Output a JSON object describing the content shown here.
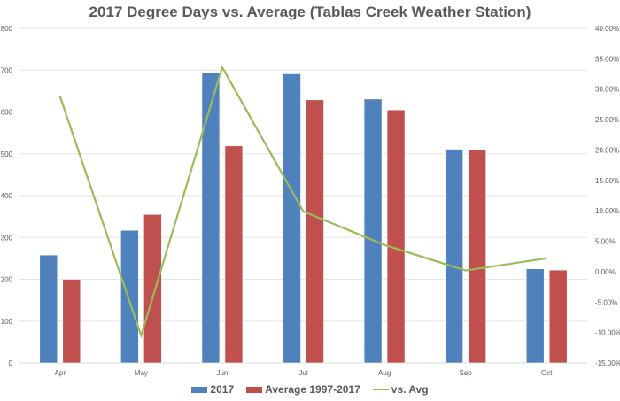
{
  "chart_data": {
    "type": "bar",
    "title": "2017 Degree Days vs. Average (Tablas Creek Weather Station)",
    "xlabel": "",
    "ylabel": "",
    "categories": [
      "Apr",
      "May",
      "Jun",
      "Jul",
      "Aug",
      "Sep",
      "Oct"
    ],
    "series": [
      {
        "name": "2017",
        "type": "bar",
        "axis": "left",
        "color": "#4F81BD",
        "values": [
          258,
          317,
          694,
          691,
          631,
          511,
          225
        ]
      },
      {
        "name": "Average 1997-2017",
        "type": "bar",
        "axis": "left",
        "color": "#C0504D",
        "values": [
          200,
          355,
          519,
          629,
          605,
          509,
          222
        ]
      },
      {
        "name": "vs. Avg",
        "type": "line",
        "axis": "right",
        "color": "#9BBB59",
        "values": [
          28.8,
          -10.5,
          33.6,
          9.9,
          4.4,
          0.2,
          2.2
        ]
      }
    ],
    "ylim": [
      0,
      800
    ],
    "y2lim": [
      -15,
      40
    ],
    "yticks": [
      "0",
      "100",
      "200",
      "300",
      "400",
      "500",
      "600",
      "700",
      "800"
    ],
    "y2ticks": [
      "-15.00%",
      "-10.00%",
      "-5.00%",
      "0.00%",
      "5.00%",
      "10.00%",
      "15.00%",
      "20.00%",
      "25.00%",
      "30.00%",
      "35.00%",
      "40.00%"
    ],
    "grid": true,
    "legend_position": "bottom"
  },
  "legend": {
    "s1": "2017",
    "s2": "Average 1997-2017",
    "s3": "vs. Avg"
  }
}
